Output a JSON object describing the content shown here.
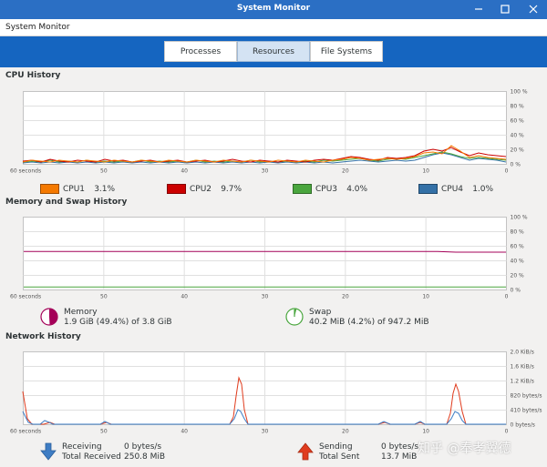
{
  "window": {
    "title": "System Monitor"
  },
  "app": {
    "name": "System Monitor"
  },
  "tabs": [
    {
      "label": "Processes"
    },
    {
      "label": "Resources"
    },
    {
      "label": "File Systems"
    }
  ],
  "cpu": {
    "title": "CPU History",
    "y_ticks": [
      "100 %",
      "80 %",
      "60 %",
      "40 %",
      "20 %",
      "0 %"
    ],
    "x_ticks": [
      "60 seconds",
      "50",
      "40",
      "30",
      "20",
      "10",
      "0"
    ],
    "legend": [
      {
        "name": "CPU1",
        "value": "3.1%",
        "color": "#f57900"
      },
      {
        "name": "CPU2",
        "value": "9.7%",
        "color": "#cc0000"
      },
      {
        "name": "CPU3",
        "value": "4.0%",
        "color": "#4aa63e"
      },
      {
        "name": "CPU4",
        "value": "1.0%",
        "color": "#3471a7"
      }
    ]
  },
  "memory": {
    "title": "Memory and Swap History",
    "y_ticks": [
      "100 %",
      "80 %",
      "60 %",
      "40 %",
      "20 %",
      "0 %"
    ],
    "x_ticks": [
      "60 seconds",
      "50",
      "40",
      "30",
      "20",
      "10",
      "0"
    ],
    "memory_label": "Memory",
    "memory_detail": "1.9 GiB (49.4%) of 3.8 GiB",
    "memory_color": "#a40058",
    "memory_percent": 49.4,
    "swap_label": "Swap",
    "swap_detail": "40.2 MiB (4.2%) of 947.2 MiB",
    "swap_color": "#4aa63e",
    "swap_percent": 4.2
  },
  "network": {
    "title": "Network History",
    "y_ticks": [
      "2.0 KiB/s",
      "1.6 KiB/s",
      "1.2 KiB/s",
      "820 bytes/s",
      "410 bytes/s",
      "0 bytes/s"
    ],
    "x_ticks": [
      "60 seconds",
      "50",
      "40",
      "30",
      "20",
      "10",
      "0"
    ],
    "receiving_label": "Receiving",
    "receiving_rate": "0 bytes/s",
    "total_received_label": "Total Received",
    "total_received": "250.8 MiB",
    "receiving_color": "#3e7dc4",
    "sending_label": "Sending",
    "sending_rate": "0 bytes/s",
    "total_sent_label": "Total Sent",
    "total_sent": "13.7 MiB",
    "sending_color": "#e03c1e"
  },
  "watermark": "知乎 @奉孝翼德"
}
